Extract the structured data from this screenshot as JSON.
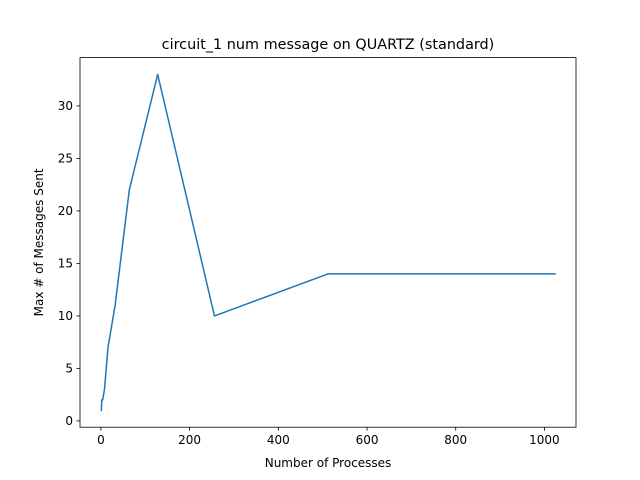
{
  "chart_data": {
    "type": "line",
    "title": "circuit_1 num message on QUARTZ (standard)",
    "xlabel": "Number of Processes",
    "ylabel": "Max # of Messages Sent",
    "xlim": [
      -47.15,
      1071.15
    ],
    "ylim": [
      -0.6,
      34.6
    ],
    "xticks": [
      0,
      200,
      400,
      600,
      800,
      1000
    ],
    "yticks": [
      0,
      5,
      10,
      15,
      20,
      25,
      30
    ],
    "grid": false,
    "legend": "none",
    "series": [
      {
        "color": "#1f77b4",
        "x": [
          1,
          2,
          4,
          8,
          16,
          32,
          64,
          128,
          256,
          512,
          1024
        ],
        "y": [
          1,
          2,
          2,
          3,
          7,
          11,
          22,
          33,
          10,
          14,
          14
        ]
      }
    ]
  }
}
